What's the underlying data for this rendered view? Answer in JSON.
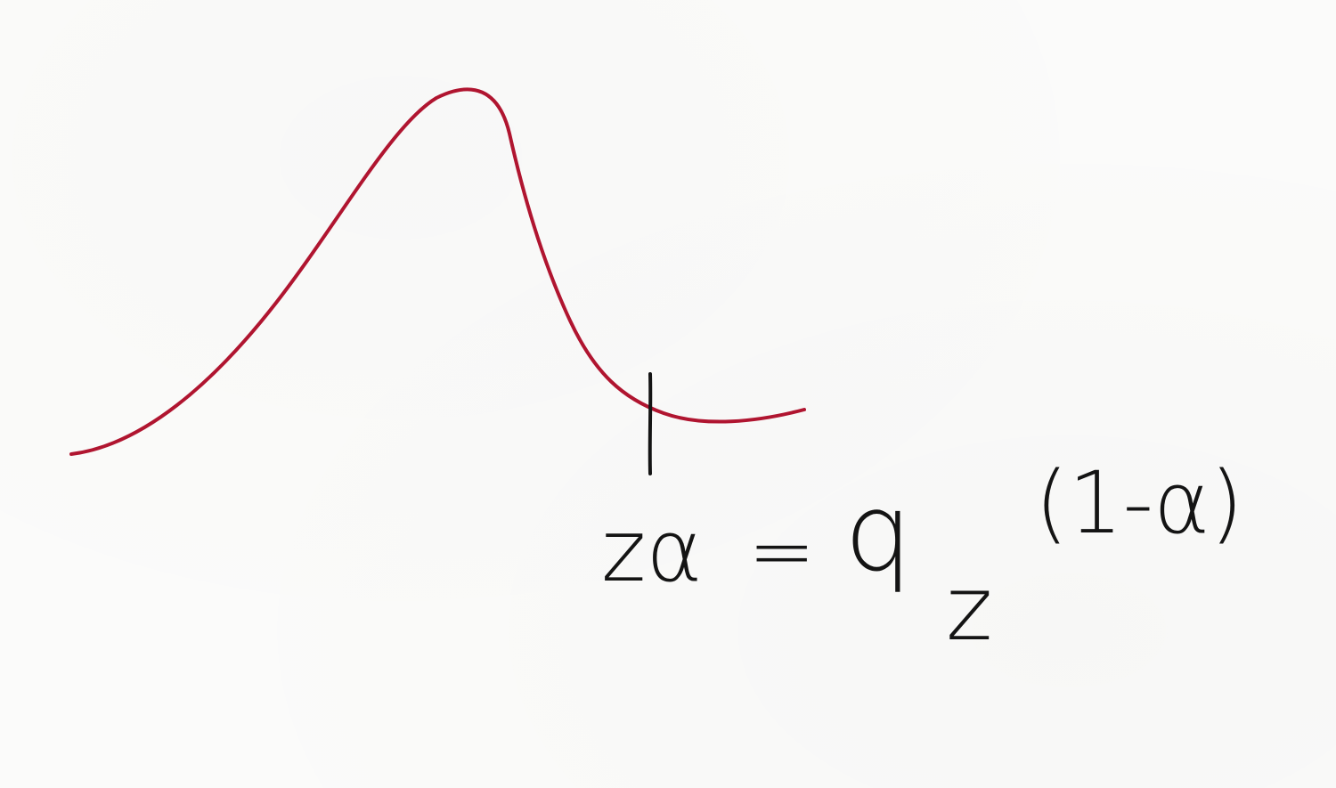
{
  "colors": {
    "paper": "#fbfbfa",
    "curve": "#b01530",
    "ink": "#141414"
  },
  "annotation": {
    "lhs": "zα",
    "equals": "=",
    "quantile": "q",
    "subscript": "z",
    "superscript": "(1-α)"
  }
}
